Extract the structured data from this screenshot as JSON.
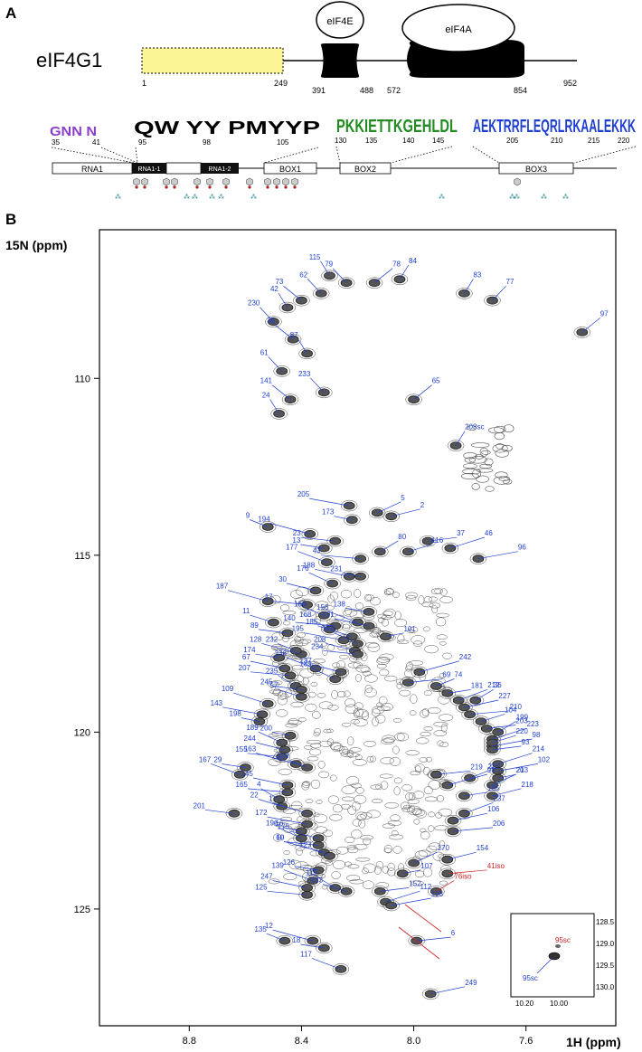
{
  "panel_a": {
    "letter": "A",
    "protein": "eIF4G1",
    "domain_labels": {
      "eif4e": "eIF4E",
      "eif4a": "eIF4A"
    },
    "positions": [
      "1",
      "249",
      "391",
      "488",
      "572",
      "854",
      "952"
    ],
    "logo_groups": [
      {
        "letters": "GNN N",
        "ticks": [
          "35",
          "41"
        ]
      },
      {
        "letters": "QW YY PMYYP",
        "ticks": [
          "95",
          "98",
          "105"
        ]
      },
      {
        "letters": "PKKIETTKGEHLDL",
        "ticks": [
          "130",
          "135",
          "140",
          "145"
        ]
      },
      {
        "letters": "AEKTRRFLEQRLRKAALEKKK",
        "ticks": [
          "205",
          "210",
          "215",
          "220"
        ]
      }
    ],
    "segments": [
      "RNA1",
      "RNA1-1",
      "RNA1-2",
      "BOX1",
      "BOX2",
      "BOX3"
    ]
  },
  "panel_b": {
    "letter": "B",
    "y_axis_title": "15N (ppm)",
    "x_axis_title": "1H (ppm)",
    "y_ticks": [
      "110",
      "115",
      "120",
      "125"
    ],
    "x_ticks": [
      "8.8",
      "8.4",
      "8.0",
      "7.6"
    ],
    "inset": {
      "y_ticks": [
        "128.5",
        "129.0",
        "129.5",
        "130.0"
      ],
      "x_ticks": [
        "10.20",
        "10.00"
      ],
      "labels": [
        "95sc",
        "95sc"
      ]
    }
  },
  "chart_data": {
    "type": "scatter",
    "title": "",
    "xlabel": "1H (ppm)",
    "ylabel": "15N (ppm)",
    "xlim": [
      9.12,
      7.28
    ],
    "ylim": [
      105.8,
      128.3
    ],
    "x_reversed": true,
    "y_reversed": true,
    "grid": false,
    "series": [
      {
        "points": [
          {
            "x": 8.3,
            "y": 107.1,
            "label": "115"
          },
          {
            "x": 8.24,
            "y": 107.3,
            "label": "79"
          },
          {
            "x": 8.14,
            "y": 107.3,
            "label": "78"
          },
          {
            "x": 8.05,
            "y": 107.2,
            "label": "84"
          },
          {
            "x": 8.33,
            "y": 107.6,
            "label": "62"
          },
          {
            "x": 8.4,
            "y": 107.8,
            "label": "73"
          },
          {
            "x": 8.45,
            "y": 108.0,
            "label": "42"
          },
          {
            "x": 8.5,
            "y": 108.4,
            "label": "230"
          },
          {
            "x": 8.43,
            "y": 108.9,
            "label": "35"
          },
          {
            "x": 8.38,
            "y": 109.3,
            "label": "87"
          },
          {
            "x": 8.47,
            "y": 109.8,
            "label": "61"
          },
          {
            "x": 8.44,
            "y": 110.6,
            "label": "141"
          },
          {
            "x": 8.48,
            "y": 111.0,
            "label": "24"
          },
          {
            "x": 8.32,
            "y": 110.4,
            "label": "233"
          },
          {
            "x": 8.0,
            "y": 110.6,
            "label": "65"
          },
          {
            "x": 7.82,
            "y": 107.6,
            "label": "83"
          },
          {
            "x": 7.72,
            "y": 107.8,
            "label": "77"
          },
          {
            "x": 7.4,
            "y": 108.7,
            "label": "97"
          },
          {
            "x": 7.85,
            "y": 111.9,
            "label": "208sc"
          },
          {
            "x": 8.23,
            "y": 113.6,
            "label": "205"
          },
          {
            "x": 8.22,
            "y": 114.0,
            "label": "173"
          },
          {
            "x": 8.13,
            "y": 113.8,
            "label": "5"
          },
          {
            "x": 8.08,
            "y": 113.9,
            "label": "2"
          },
          {
            "x": 8.28,
            "y": 114.6,
            "label": "23"
          },
          {
            "x": 8.37,
            "y": 114.4,
            "label": "194"
          },
          {
            "x": 8.52,
            "y": 114.2,
            "label": "9"
          },
          {
            "x": 8.32,
            "y": 114.8,
            "label": "13"
          },
          {
            "x": 8.31,
            "y": 115.2,
            "label": "177"
          },
          {
            "x": 8.23,
            "y": 115.6,
            "label": "188"
          },
          {
            "x": 8.19,
            "y": 115.1,
            "label": "43"
          },
          {
            "x": 8.12,
            "y": 114.9,
            "label": "80"
          },
          {
            "x": 8.02,
            "y": 114.9,
            "label": "116"
          },
          {
            "x": 7.95,
            "y": 114.6,
            "label": "37"
          },
          {
            "x": 7.87,
            "y": 114.8,
            "label": "46"
          },
          {
            "x": 7.77,
            "y": 115.1,
            "label": "96"
          },
          {
            "x": 8.19,
            "y": 115.6,
            "label": "231"
          },
          {
            "x": 8.29,
            "y": 115.8,
            "label": "176"
          },
          {
            "x": 8.35,
            "y": 116.0,
            "label": "30"
          },
          {
            "x": 8.38,
            "y": 116.4,
            "label": "17"
          },
          {
            "x": 8.52,
            "y": 116.3,
            "label": "187"
          },
          {
            "x": 8.32,
            "y": 116.7,
            "label": "160"
          },
          {
            "x": 8.16,
            "y": 116.6,
            "label": "138"
          },
          {
            "x": 8.2,
            "y": 116.9,
            "label": "156"
          },
          {
            "x": 8.16,
            "y": 117.0,
            "label": "191"
          },
          {
            "x": 8.28,
            "y": 117.0,
            "label": "140"
          },
          {
            "x": 8.3,
            "y": 117.1,
            "label": "168"
          },
          {
            "x": 8.5,
            "y": 116.9,
            "label": "11"
          },
          {
            "x": 8.45,
            "y": 117.2,
            "label": "89"
          },
          {
            "x": 8.22,
            "y": 117.3,
            "label": "185"
          },
          {
            "x": 8.25,
            "y": 117.4,
            "label": "195"
          },
          {
            "x": 8.1,
            "y": 117.3,
            "label": "101"
          },
          {
            "x": 8.2,
            "y": 117.5,
            "label": "178"
          },
          {
            "x": 8.21,
            "y": 117.7,
            "label": "208"
          },
          {
            "x": 8.2,
            "y": 117.8,
            "label": "234"
          },
          {
            "x": 8.4,
            "y": 117.8,
            "label": "128"
          },
          {
            "x": 8.42,
            "y": 117.7,
            "label": "232"
          },
          {
            "x": 8.48,
            "y": 117.9,
            "label": "174"
          },
          {
            "x": 8.35,
            "y": 118.2,
            "label": "236"
          },
          {
            "x": 8.46,
            "y": 118.2,
            "label": "67"
          },
          {
            "x": 8.44,
            "y": 118.4,
            "label": "207"
          },
          {
            "x": 8.42,
            "y": 118.7,
            "label": "235"
          },
          {
            "x": 8.4,
            "y": 119.0,
            "label": "57"
          },
          {
            "x": 8.4,
            "y": 118.8,
            "label": "245"
          },
          {
            "x": 8.52,
            "y": 119.2,
            "label": "109"
          },
          {
            "x": 8.54,
            "y": 119.5,
            "label": "143"
          },
          {
            "x": 8.55,
            "y": 119.7,
            "label": "198"
          },
          {
            "x": 8.28,
            "y": 118.5,
            "label": "189"
          },
          {
            "x": 8.26,
            "y": 118.3,
            "label": "137"
          },
          {
            "x": 8.02,
            "y": 118.6,
            "label": "69"
          },
          {
            "x": 7.98,
            "y": 118.3,
            "label": "242"
          },
          {
            "x": 7.92,
            "y": 118.7,
            "label": "74"
          },
          {
            "x": 7.88,
            "y": 118.9,
            "label": "181"
          },
          {
            "x": 7.84,
            "y": 119.1,
            "label": "212"
          },
          {
            "x": 7.82,
            "y": 119.3,
            "label": "227"
          },
          {
            "x": 7.8,
            "y": 119.5,
            "label": "210"
          },
          {
            "x": 7.78,
            "y": 119.1,
            "label": "36"
          },
          {
            "x": 7.76,
            "y": 119.7,
            "label": "104"
          },
          {
            "x": 7.74,
            "y": 119.9,
            "label": "203"
          },
          {
            "x": 7.72,
            "y": 120.2,
            "label": "223"
          },
          {
            "x": 7.72,
            "y": 120.4,
            "label": "98"
          },
          {
            "x": 8.44,
            "y": 120.1,
            "label": "200"
          },
          {
            "x": 8.47,
            "y": 120.3,
            "label": "189"
          },
          {
            "x": 8.46,
            "y": 120.5,
            "label": "244"
          },
          {
            "x": 8.47,
            "y": 120.7,
            "label": "155"
          },
          {
            "x": 8.42,
            "y": 120.9,
            "label": "163"
          },
          {
            "x": 8.38,
            "y": 121.0,
            "label": "239"
          },
          {
            "x": 8.6,
            "y": 121.0,
            "label": "29"
          },
          {
            "x": 8.62,
            "y": 121.2,
            "label": "167"
          },
          {
            "x": 8.45,
            "y": 121.5,
            "label": "145"
          },
          {
            "x": 8.45,
            "y": 121.7,
            "label": "165"
          },
          {
            "x": 8.48,
            "y": 121.9,
            "label": "4"
          },
          {
            "x": 8.47,
            "y": 122.1,
            "label": "22"
          },
          {
            "x": 8.64,
            "y": 122.3,
            "label": "201"
          },
          {
            "x": 8.38,
            "y": 122.3,
            "label": "1"
          },
          {
            "x": 8.38,
            "y": 122.6,
            "label": "172"
          },
          {
            "x": 8.4,
            "y": 122.8,
            "label": "16"
          },
          {
            "x": 8.4,
            "y": 123.0,
            "label": "196"
          },
          {
            "x": 8.34,
            "y": 123.0,
            "label": "175"
          },
          {
            "x": 8.34,
            "y": 123.2,
            "label": "60"
          },
          {
            "x": 8.32,
            "y": 123.4,
            "label": "10"
          },
          {
            "x": 8.3,
            "y": 123.5,
            "label": "127"
          },
          {
            "x": 8.34,
            "y": 123.9,
            "label": "126"
          },
          {
            "x": 8.36,
            "y": 124.2,
            "label": "139"
          },
          {
            "x": 8.38,
            "y": 124.4,
            "label": "247"
          },
          {
            "x": 8.38,
            "y": 124.6,
            "label": "125"
          },
          {
            "x": 8.28,
            "y": 124.4,
            "label": "119"
          },
          {
            "x": 8.24,
            "y": 124.5,
            "label": "133"
          },
          {
            "x": 8.12,
            "y": 124.5,
            "label": "152"
          },
          {
            "x": 8.1,
            "y": 124.8,
            "label": "112"
          },
          {
            "x": 8.08,
            "y": 124.9,
            "label": "193"
          },
          {
            "x": 8.04,
            "y": 124.0,
            "label": "107"
          },
          {
            "x": 8.0,
            "y": 123.7,
            "label": "170"
          },
          {
            "x": 7.88,
            "y": 123.6,
            "label": "154"
          },
          {
            "x": 7.92,
            "y": 121.2,
            "label": "219"
          },
          {
            "x": 7.88,
            "y": 121.5,
            "label": "95"
          },
          {
            "x": 7.8,
            "y": 121.3,
            "label": "222"
          },
          {
            "x": 7.82,
            "y": 121.8,
            "label": "105"
          },
          {
            "x": 7.82,
            "y": 122.3,
            "label": "237"
          },
          {
            "x": 7.86,
            "y": 122.5,
            "label": "106"
          },
          {
            "x": 7.86,
            "y": 122.8,
            "label": "206"
          },
          {
            "x": 7.7,
            "y": 120.0,
            "label": "199"
          },
          {
            "x": 7.72,
            "y": 120.3,
            "label": "220"
          },
          {
            "x": 7.72,
            "y": 120.5,
            "label": "93"
          },
          {
            "x": 7.7,
            "y": 120.9,
            "label": "214"
          },
          {
            "x": 7.7,
            "y": 121.1,
            "label": "102"
          },
          {
            "x": 7.7,
            "y": 121.3,
            "label": "213"
          },
          {
            "x": 7.72,
            "y": 121.5,
            "label": "20"
          },
          {
            "x": 7.72,
            "y": 121.8,
            "label": "218"
          },
          {
            "x": 7.99,
            "y": 125.9,
            "label": "6"
          },
          {
            "x": 8.36,
            "y": 125.9,
            "label": "12"
          },
          {
            "x": 8.46,
            "y": 125.9,
            "label": "135"
          },
          {
            "x": 8.32,
            "y": 126.1,
            "label": "18"
          },
          {
            "x": 8.26,
            "y": 126.7,
            "label": "117"
          },
          {
            "x": 7.94,
            "y": 127.4,
            "label": "249"
          },
          {
            "x": 7.88,
            "y": 124.0,
            "label": "41iso"
          },
          {
            "x": 7.92,
            "y": 124.5,
            "label": "76iso"
          }
        ]
      }
    ]
  }
}
